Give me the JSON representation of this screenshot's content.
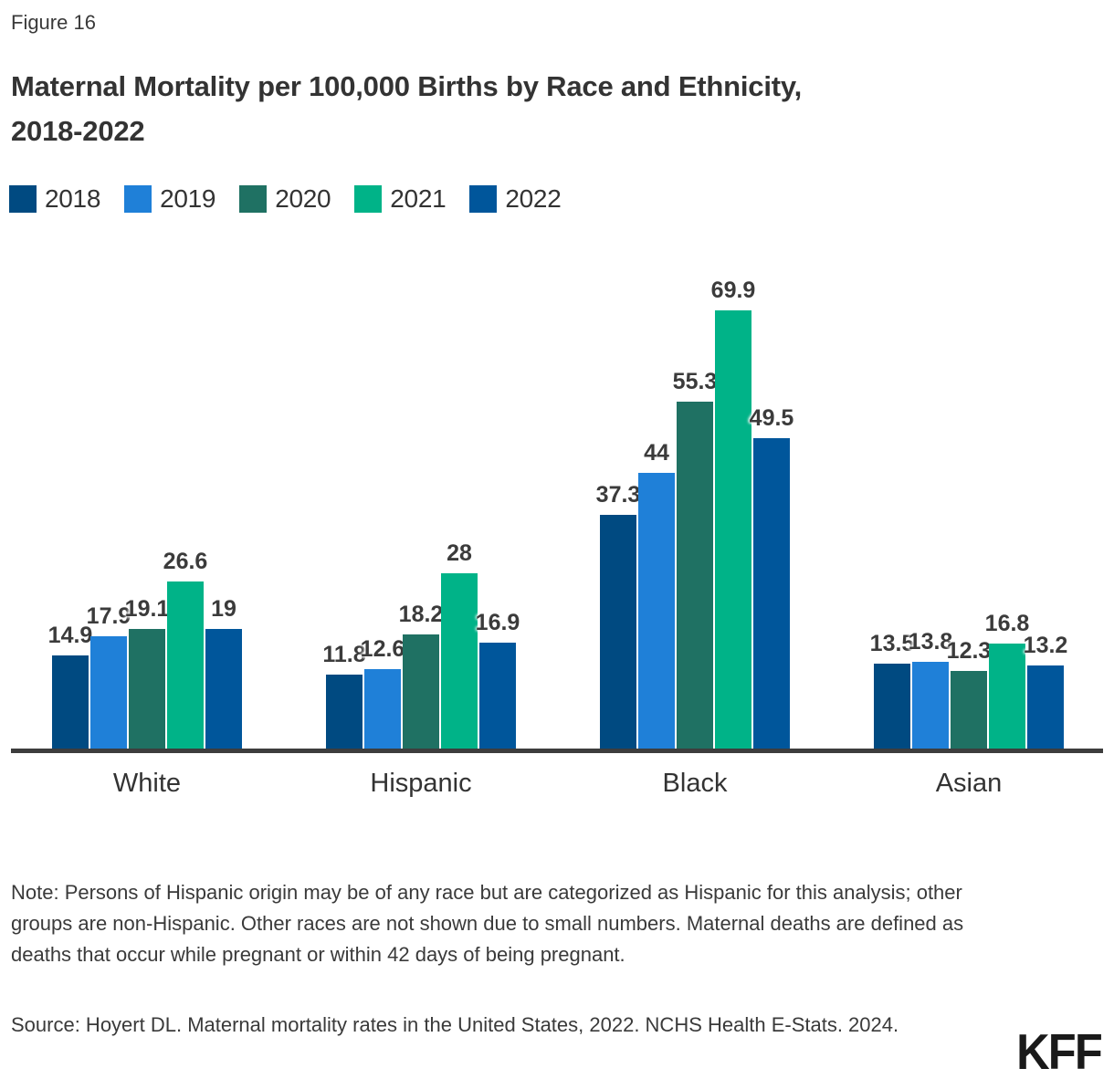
{
  "figure_label": "Figure 16",
  "header": {
    "title_lines": [
      "Maternal Mortality per 100,000 Births by Race and Ethnicity,",
      "2018-2022"
    ]
  },
  "chart_data": {
    "type": "bar",
    "title": "Maternal Mortality per 100,000 Births by Race and Ethnicity, 2018-2022",
    "categories": [
      "White",
      "Hispanic",
      "Black",
      "Asian"
    ],
    "series": [
      {
        "name": "2018",
        "color": "#004a81",
        "values": [
          14.9,
          11.8,
          37.3,
          13.5
        ],
        "labels": [
          "14.9",
          "11.8",
          "37.3",
          "13.5"
        ]
      },
      {
        "name": "2019",
        "color": "#1f80d8",
        "values": [
          17.9,
          12.6,
          44.0,
          13.8
        ],
        "labels": [
          "17.9",
          "12.6",
          "44",
          "13.8"
        ]
      },
      {
        "name": "2020",
        "color": "#1f7163",
        "values": [
          19.1,
          18.2,
          55.3,
          12.3
        ],
        "labels": [
          "19.1",
          "18.2",
          "55.3",
          "12.3"
        ]
      },
      {
        "name": "2021",
        "color": "#00b388",
        "values": [
          26.6,
          28.0,
          69.9,
          16.8
        ],
        "labels": [
          "26.6",
          "28",
          "69.9",
          "16.8"
        ]
      },
      {
        "name": "2022",
        "color": "#00569b",
        "values": [
          19.0,
          16.9,
          49.5,
          13.2
        ],
        "labels": [
          "19",
          "16.9",
          "49.5",
          "13.2"
        ]
      }
    ],
    "xlabel": "",
    "ylabel": "",
    "ylim": [
      0,
      75
    ],
    "grid": false,
    "value_labels": true,
    "legend_position": "top-left",
    "axis_line_color": "#3d3d3d"
  },
  "note": "Note: Persons of Hispanic origin may be of any race but are categorized as Hispanic for this analysis; other groups are non-Hispanic. Other races are not shown due to small numbers. Maternal deaths are defined as deaths that occur while pregnant or within 42 days of being pregnant.",
  "source": "Source: Hoyert DL. Maternal mortality rates in the United States, 2022. NCHS Health E-Stats. 2024.",
  "logo": "KFF"
}
